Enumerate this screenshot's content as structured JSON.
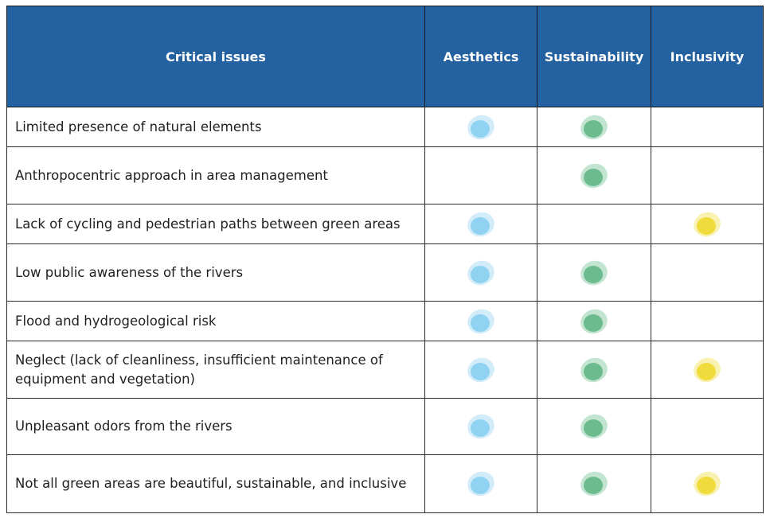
{
  "table": {
    "columns": [
      "Critical issues",
      "Aesthetics",
      "Sustainability",
      "Inclusivity"
    ],
    "colors": [
      "#8fd2f1",
      "#6cbb8e",
      "#efdc3c"
    ],
    "rows": [
      {
        "issue": "Limited presence of natural elements",
        "marks": [
          true,
          true,
          false
        ]
      },
      {
        "issue": "Anthropocentric approach in area management",
        "marks": [
          false,
          true,
          false
        ]
      },
      {
        "issue": "Lack of cycling and pedestrian paths between green areas",
        "marks": [
          true,
          false,
          true
        ]
      },
      {
        "issue": "Low public awareness of the rivers",
        "marks": [
          true,
          true,
          false
        ]
      },
      {
        "issue": "Flood and hydrogeological risk",
        "marks": [
          true,
          true,
          false
        ]
      },
      {
        "issue": "Neglect (lack of cleanliness, insufficient maintenance of equipment and vegetation)",
        "marks": [
          true,
          true,
          true
        ]
      },
      {
        "issue": "Unpleasant odors from the rivers",
        "marks": [
          true,
          true,
          false
        ]
      },
      {
        "issue": "Not all green areas are beautiful, sustainable, and inclusive",
        "marks": [
          true,
          true,
          true
        ]
      }
    ]
  }
}
